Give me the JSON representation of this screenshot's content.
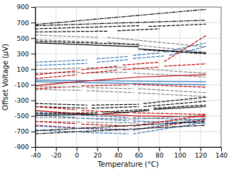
{
  "chart_data": {
    "type": "line",
    "xlabel": "Temperature (°C)",
    "ylabel": "Offset Voltage (μV)",
    "xlim": [
      -40,
      140
    ],
    "ylim": [
      -900,
      900
    ],
    "xticks": [
      -40,
      -20,
      0,
      20,
      40,
      60,
      80,
      100,
      120,
      140
    ],
    "yticks": [
      -900,
      -700,
      -500,
      -300,
      -100,
      100,
      300,
      500,
      700,
      900
    ],
    "grid": true,
    "series": [
      {
        "color": "#000000",
        "line_style": "dashdot",
        "x": [
          -40,
          125
        ],
        "values": [
          675,
          870
        ]
      },
      {
        "color": "#000000",
        "line_style": "dashdot",
        "x": [
          -40,
          125
        ],
        "values": [
          660,
          730
        ]
      },
      {
        "color": "#000000",
        "line_style": "dashed",
        "x": [
          -40,
          60
        ],
        "values": [
          620,
          660
        ]
      },
      {
        "color": "#000000",
        "line_style": "dashed",
        "x": [
          70,
          125
        ],
        "values": [
          650,
          680
        ]
      },
      {
        "color": "#000000",
        "line_style": "dashed",
        "x": [
          -40,
          30
        ],
        "values": [
          580,
          590
        ]
      },
      {
        "color": "#000000",
        "line_style": "dashed",
        "x": [
          40,
          80
        ],
        "values": [
          595,
          620
        ]
      },
      {
        "color": "#808080",
        "line_style": "dashed",
        "x": [
          -40,
          20
        ],
        "values": [
          540,
          510
        ]
      },
      {
        "color": "#808080",
        "line_style": "dashed",
        "x": [
          30,
          125
        ],
        "values": [
          510,
          390
        ]
      },
      {
        "color": "#808080",
        "line_style": "dashed",
        "x": [
          -40,
          20
        ],
        "values": [
          480,
          450
        ]
      },
      {
        "color": "#808080",
        "line_style": "dashed",
        "x": [
          30,
          125
        ],
        "values": [
          450,
          320
        ]
      },
      {
        "color": "#000000",
        "line_style": "dashed",
        "x": [
          -40,
          60
        ],
        "values": [
          460,
          420
        ]
      },
      {
        "color": "#000000",
        "line_style": "dashed",
        "x": [
          65,
          125
        ],
        "values": [
          350,
          300
        ]
      },
      {
        "color": "#000000",
        "line_style": "solid",
        "x": [
          -40,
          60
        ],
        "values": [
          440,
          390
        ]
      },
      {
        "color": "#000000",
        "line_style": "solid",
        "x": [
          60,
          125
        ],
        "values": [
          360,
          310
        ]
      },
      {
        "color": "#2E74B5",
        "line_style": "dashed",
        "x": [
          -40,
          10
        ],
        "values": [
          190,
          220
        ]
      },
      {
        "color": "#2E74B5",
        "line_style": "dashed",
        "x": [
          20,
          50
        ],
        "values": [
          235,
          265
        ]
      },
      {
        "color": "#2E74B5",
        "line_style": "dashed",
        "x": [
          55,
          80
        ],
        "values": [
          280,
          310
        ]
      },
      {
        "color": "#2E74B5",
        "line_style": "dashed",
        "x": [
          85,
          125
        ],
        "values": [
          320,
          440
        ]
      },
      {
        "color": "#2E74B5",
        "line_style": "dashed",
        "x": [
          -40,
          10
        ],
        "values": [
          150,
          175
        ]
      },
      {
        "color": "#2E74B5",
        "line_style": "dashed",
        "x": [
          20,
          50
        ],
        "values": [
          190,
          225
        ]
      },
      {
        "color": "#2E74B5",
        "line_style": "dashed",
        "x": [
          55,
          85
        ],
        "values": [
          240,
          270
        ]
      },
      {
        "color": "#2E74B5",
        "line_style": "dashed",
        "x": [
          90,
          125
        ],
        "values": [
          280,
          390
        ]
      },
      {
        "color": "#808080",
        "line_style": "dashed",
        "x": [
          -40,
          5
        ],
        "values": [
          100,
          115
        ]
      },
      {
        "color": "#808080",
        "line_style": "dashed",
        "x": [
          10,
          50
        ],
        "values": [
          115,
          125
        ]
      },
      {
        "color": "#808080",
        "line_style": "dashed",
        "x": [
          55,
          100
        ],
        "values": [
          115,
          70
        ]
      },
      {
        "color": "#808080",
        "line_style": "dashed",
        "x": [
          100,
          125
        ],
        "values": [
          70,
          50
        ]
      },
      {
        "color": "#808080",
        "line_style": "dashed",
        "x": [
          -40,
          5
        ],
        "values": [
          50,
          60
        ]
      },
      {
        "color": "#808080",
        "line_style": "dashed",
        "x": [
          10,
          50
        ],
        "values": [
          55,
          60
        ]
      },
      {
        "color": "#808080",
        "line_style": "dashed",
        "x": [
          55,
          100
        ],
        "values": [
          50,
          20
        ]
      },
      {
        "color": "#808080",
        "line_style": "dashed",
        "x": [
          100,
          125
        ],
        "values": [
          20,
          0
        ]
      },
      {
        "color": "#C00000",
        "line_style": "dashed",
        "x": [
          -40,
          0
        ],
        "values": [
          30,
          80
        ]
      },
      {
        "color": "#C00000",
        "line_style": "dashed",
        "x": [
          5,
          40
        ],
        "values": [
          95,
          140
        ]
      },
      {
        "color": "#C00000",
        "line_style": "dashed",
        "x": [
          45,
          80
        ],
        "values": [
          155,
          190
        ]
      },
      {
        "color": "#C00000",
        "line_style": "dashed",
        "x": [
          85,
          125
        ],
        "values": [
          200,
          530
        ]
      },
      {
        "color": "#C00000",
        "line_style": "dashed",
        "x": [
          -40,
          0
        ],
        "values": [
          -20,
          30
        ]
      },
      {
        "color": "#C00000",
        "line_style": "dashed",
        "x": [
          5,
          40
        ],
        "values": [
          45,
          90
        ]
      },
      {
        "color": "#C00000",
        "line_style": "dashed",
        "x": [
          45,
          80
        ],
        "values": [
          95,
          130
        ]
      },
      {
        "color": "#C00000",
        "line_style": "dashed",
        "x": [
          85,
          125
        ],
        "values": [
          140,
          170
        ]
      },
      {
        "color": "#2E74B5",
        "line_style": "solid",
        "x": [
          -40,
          125
        ],
        "values": [
          -40,
          -60
        ]
      },
      {
        "color": "#2E74B5",
        "line_style": "solid",
        "x": [
          -40,
          125
        ],
        "values": [
          -60,
          -100
        ]
      },
      {
        "color": "#C00000",
        "line_style": "solid",
        "x": [
          -40,
          0
        ],
        "values": [
          -110,
          -60
        ]
      },
      {
        "color": "#C00000",
        "line_style": "solid",
        "x": [
          0,
          60
        ],
        "values": [
          -60,
          0
        ]
      },
      {
        "color": "#C00000",
        "line_style": "solid",
        "x": [
          60,
          125
        ],
        "values": [
          0,
          30
        ]
      },
      {
        "color": "#C00000",
        "line_style": "dashed",
        "x": [
          -40,
          0
        ],
        "values": [
          -150,
          -120
        ]
      },
      {
        "color": "#C00000",
        "line_style": "dashed",
        "x": [
          5,
          50
        ],
        "values": [
          -115,
          -100
        ]
      },
      {
        "color": "#C00000",
        "line_style": "dashed",
        "x": [
          55,
          125
        ],
        "values": [
          -95,
          -130
        ]
      },
      {
        "color": "#808080",
        "line_style": "dashed",
        "x": [
          -40,
          5
        ],
        "values": [
          -120,
          -130
        ]
      },
      {
        "color": "#808080",
        "line_style": "dashed",
        "x": [
          10,
          55
        ],
        "values": [
          -135,
          -150
        ]
      },
      {
        "color": "#808080",
        "line_style": "dashed",
        "x": [
          60,
          125
        ],
        "values": [
          -150,
          -200
        ]
      },
      {
        "color": "#808080",
        "line_style": "dashed",
        "x": [
          -40,
          5
        ],
        "values": [
          -160,
          -170
        ]
      },
      {
        "color": "#808080",
        "line_style": "dashed",
        "x": [
          10,
          55
        ],
        "values": [
          -175,
          -200
        ]
      },
      {
        "color": "#808080",
        "line_style": "dashed",
        "x": [
          60,
          125
        ],
        "values": [
          -205,
          -250
        ]
      },
      {
        "color": "#000000",
        "line_style": "dashed",
        "x": [
          -40,
          10
        ],
        "values": [
          -340,
          -360
        ]
      },
      {
        "color": "#000000",
        "line_style": "dashed",
        "x": [
          15,
          60
        ],
        "values": [
          -360,
          -350
        ]
      },
      {
        "color": "#000000",
        "line_style": "dashed",
        "x": [
          65,
          125
        ],
        "values": [
          -340,
          -260
        ]
      },
      {
        "color": "#000000",
        "line_style": "dashed",
        "x": [
          -40,
          10
        ],
        "values": [
          -380,
          -400
        ]
      },
      {
        "color": "#000000",
        "line_style": "dashed",
        "x": [
          15,
          60
        ],
        "values": [
          -400,
          -380
        ]
      },
      {
        "color": "#000000",
        "line_style": "dashed",
        "x": [
          65,
          125
        ],
        "values": [
          -380,
          -310
        ]
      },
      {
        "color": "#C00000",
        "line_style": "dashed",
        "x": [
          -40,
          0
        ],
        "values": [
          -380,
          -420
        ]
      },
      {
        "color": "#C00000",
        "line_style": "dashed",
        "x": [
          5,
          50
        ],
        "values": [
          -430,
          -460
        ]
      },
      {
        "color": "#C00000",
        "line_style": "dashed",
        "x": [
          55,
          125
        ],
        "values": [
          -460,
          -480
        ]
      },
      {
        "color": "#C00000",
        "line_style": "solid",
        "x": [
          -40,
          0
        ],
        "values": [
          -430,
          -470
        ]
      },
      {
        "color": "#C00000",
        "line_style": "solid",
        "x": [
          0,
          60
        ],
        "values": [
          -470,
          -500
        ]
      },
      {
        "color": "#C00000",
        "line_style": "solid",
        "x": [
          60,
          125
        ],
        "values": [
          -500,
          -510
        ]
      },
      {
        "color": "#2E74B5",
        "line_style": "dashed",
        "x": [
          -40,
          0
        ],
        "values": [
          -450,
          -480
        ]
      },
      {
        "color": "#2E74B5",
        "line_style": "dashed",
        "x": [
          5,
          50
        ],
        "values": [
          -490,
          -520
        ]
      },
      {
        "color": "#2E74B5",
        "line_style": "dashed",
        "x": [
          55,
          125
        ],
        "values": [
          -525,
          -550
        ]
      },
      {
        "color": "#2E74B5",
        "line_style": "dashed",
        "x": [
          -40,
          0
        ],
        "values": [
          -490,
          -520
        ]
      },
      {
        "color": "#2E74B5",
        "line_style": "dashed",
        "x": [
          5,
          50
        ],
        "values": [
          -530,
          -560
        ]
      },
      {
        "color": "#2E74B5",
        "line_style": "dashed",
        "x": [
          55,
          125
        ],
        "values": [
          -565,
          -595
        ]
      },
      {
        "color": "#000000",
        "line_style": "dashed",
        "x": [
          -40,
          20
        ],
        "values": [
          -470,
          -460
        ]
      },
      {
        "color": "#000000",
        "line_style": "dashed",
        "x": [
          25,
          70
        ],
        "values": [
          -450,
          -415
        ]
      },
      {
        "color": "#000000",
        "line_style": "dashed",
        "x": [
          75,
          125
        ],
        "values": [
          -400,
          -360
        ]
      },
      {
        "color": "#000000",
        "line_style": "solid",
        "x": [
          -40,
          20
        ],
        "values": [
          -490,
          -480
        ]
      },
      {
        "color": "#000000",
        "line_style": "solid",
        "x": [
          25,
          70
        ],
        "values": [
          -475,
          -430
        ]
      },
      {
        "color": "#000000",
        "line_style": "solid",
        "x": [
          75,
          125
        ],
        "values": [
          -415,
          -380
        ]
      },
      {
        "color": "#808080",
        "line_style": "dashed",
        "x": [
          -40,
          5
        ],
        "values": [
          -520,
          -530
        ]
      },
      {
        "color": "#808080",
        "line_style": "dashed",
        "x": [
          10,
          60
        ],
        "values": [
          -530,
          -540
        ]
      },
      {
        "color": "#808080",
        "line_style": "dashed",
        "x": [
          65,
          125
        ],
        "values": [
          -535,
          -490
        ]
      },
      {
        "color": "#808080",
        "line_style": "dashed",
        "x": [
          -40,
          5
        ],
        "values": [
          -570,
          -580
        ]
      },
      {
        "color": "#808080",
        "line_style": "dashed",
        "x": [
          10,
          60
        ],
        "values": [
          -580,
          -590
        ]
      },
      {
        "color": "#808080",
        "line_style": "dashed",
        "x": [
          65,
          125
        ],
        "values": [
          -585,
          -540
        ]
      },
      {
        "color": "#C00000",
        "line_style": "dashed",
        "x": [
          -40,
          0
        ],
        "values": [
          -570,
          -600
        ]
      },
      {
        "color": "#C00000",
        "line_style": "dashed",
        "x": [
          5,
          50
        ],
        "values": [
          -605,
          -630
        ]
      },
      {
        "color": "#C00000",
        "line_style": "dashed",
        "x": [
          55,
          125
        ],
        "values": [
          -630,
          -490
        ]
      },
      {
        "color": "#C00000",
        "line_style": "dashed",
        "x": [
          -40,
          0
        ],
        "values": [
          -620,
          -650
        ]
      },
      {
        "color": "#C00000",
        "line_style": "dashed",
        "x": [
          5,
          50
        ],
        "values": [
          -655,
          -680
        ]
      },
      {
        "color": "#C00000",
        "line_style": "dashed",
        "x": [
          55,
          125
        ],
        "values": [
          -680,
          -550
        ]
      },
      {
        "color": "#2E74B5",
        "line_style": "dashed",
        "x": [
          -40,
          0
        ],
        "values": [
          -630,
          -655
        ]
      },
      {
        "color": "#2E74B5",
        "line_style": "dashed",
        "x": [
          5,
          50
        ],
        "values": [
          -660,
          -680
        ]
      },
      {
        "color": "#2E74B5",
        "line_style": "dashed",
        "x": [
          55,
          125
        ],
        "values": [
          -680,
          -530
        ]
      },
      {
        "color": "#2E74B5",
        "line_style": "dashed",
        "x": [
          -40,
          0
        ],
        "values": [
          -680,
          -705
        ]
      },
      {
        "color": "#2E74B5",
        "line_style": "dashed",
        "x": [
          5,
          50
        ],
        "values": [
          -710,
          -730
        ]
      },
      {
        "color": "#2E74B5",
        "line_style": "dashed",
        "x": [
          55,
          125
        ],
        "values": [
          -730,
          -580
        ]
      },
      {
        "color": "#000000",
        "line_style": "dashdot",
        "x": [
          -40,
          125
        ],
        "values": [
          -690,
          -570
        ]
      },
      {
        "color": "#000000",
        "line_style": "dashdot",
        "x": [
          -40,
          125
        ],
        "values": [
          -730,
          -620
        ]
      }
    ]
  }
}
